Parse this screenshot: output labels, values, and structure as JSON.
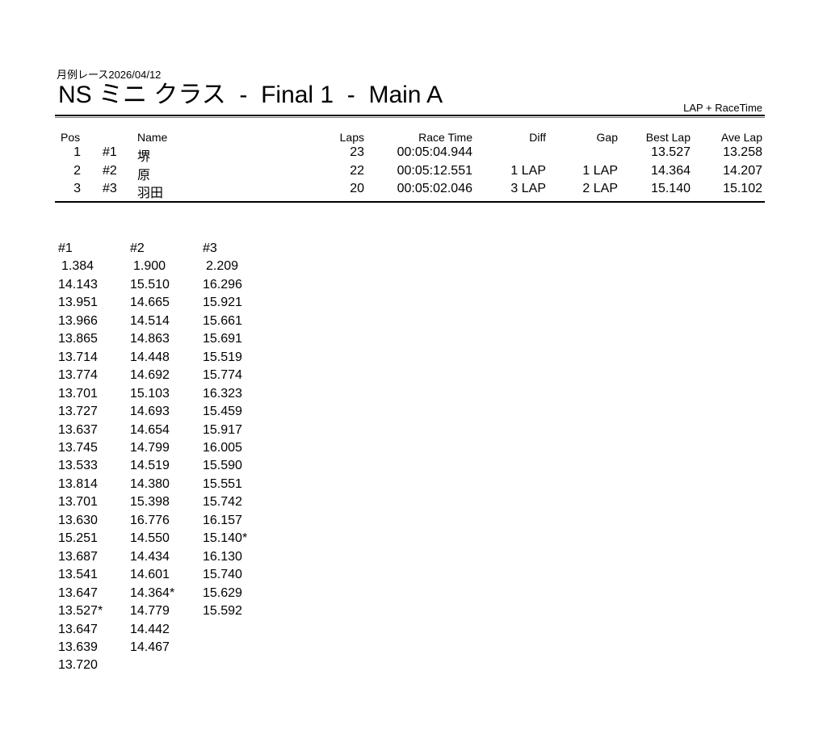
{
  "header": {
    "subtitle": "月例レース2026/04/12",
    "title": "NS ミニ クラス  -  Final 1  -  Main A",
    "mode": "LAP + RaceTime"
  },
  "results": {
    "columns": [
      "Pos",
      "Name",
      "Laps",
      "Race Time",
      "Diff",
      "Gap",
      "Best Lap",
      "Ave Lap"
    ],
    "rows": [
      {
        "pos": "1",
        "no": "#1",
        "name": "堺",
        "laps": "23",
        "race_time": "00:05:04.944",
        "diff": "",
        "gap": "",
        "best_lap": "13.527",
        "ave_lap": "13.258"
      },
      {
        "pos": "2",
        "no": "#2",
        "name": "原",
        "laps": "22",
        "race_time": "00:05:12.551",
        "diff": "1 LAP",
        "gap": "1 LAP",
        "best_lap": "14.364",
        "ave_lap": "14.207"
      },
      {
        "pos": "3",
        "no": "#3",
        "name": "羽田",
        "laps": "20",
        "race_time": "00:05:02.046",
        "diff": "3 LAP",
        "gap": "2 LAP",
        "best_lap": "15.140",
        "ave_lap": "15.102"
      }
    ]
  },
  "laps": [
    {
      "header": "#1",
      "times": [
        "1.384",
        "14.143",
        "13.951",
        "13.966",
        "13.865",
        "13.714",
        "13.774",
        "13.701",
        "13.727",
        "13.637",
        "13.745",
        "13.533",
        "13.814",
        "13.701",
        "13.630",
        "15.251",
        "13.687",
        "13.541",
        "13.647",
        "13.527*",
        "13.647",
        "13.639",
        "13.720"
      ]
    },
    {
      "header": "#2",
      "times": [
        "1.900",
        "15.510",
        "14.665",
        "14.514",
        "14.863",
        "14.448",
        "14.692",
        "15.103",
        "14.693",
        "14.654",
        "14.799",
        "14.519",
        "14.380",
        "15.398",
        "16.776",
        "14.550",
        "14.434",
        "14.601",
        "14.364*",
        "14.779",
        "14.442",
        "14.467"
      ]
    },
    {
      "header": "#3",
      "times": [
        "2.209",
        "16.296",
        "15.921",
        "15.661",
        "15.691",
        "15.519",
        "15.774",
        "16.323",
        "15.459",
        "15.917",
        "16.005",
        "15.590",
        "15.551",
        "15.742",
        "16.157",
        "15.140*",
        "16.130",
        "15.740",
        "15.629",
        "15.592"
      ]
    }
  ]
}
